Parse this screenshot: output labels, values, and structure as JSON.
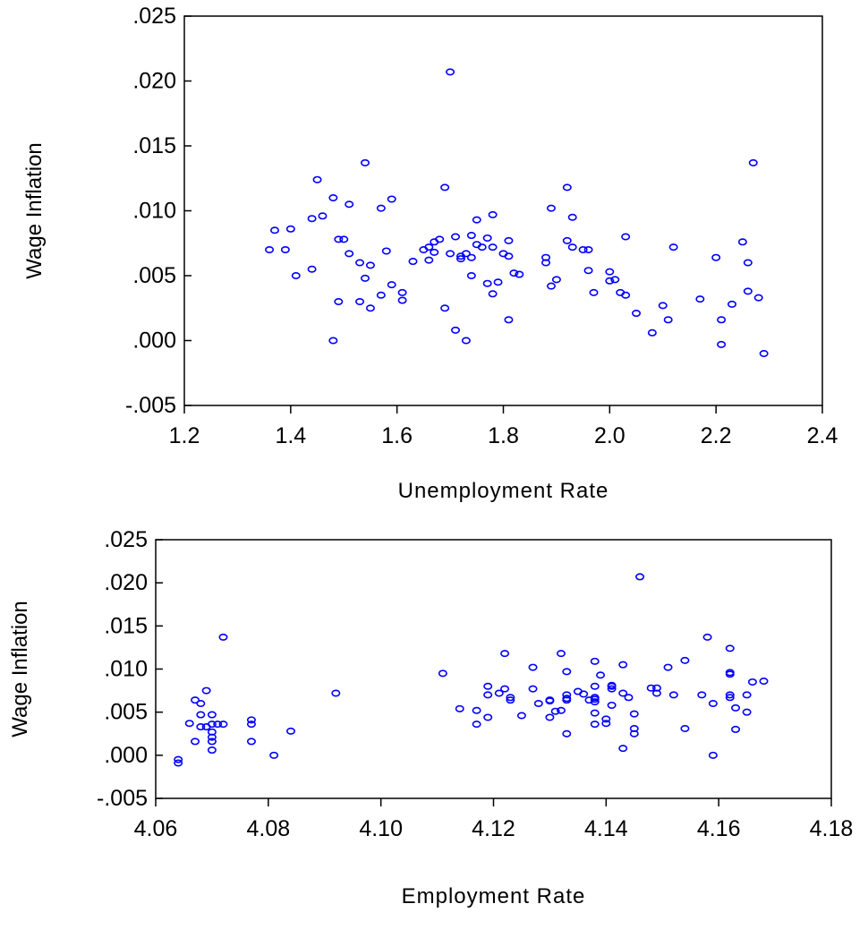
{
  "colors": {
    "point": "#0000ff",
    "axis": "#000000",
    "background": "#ffffff"
  },
  "chart_data": [
    {
      "type": "scatter",
      "title": "",
      "xlabel": "Unemployment Rate",
      "ylabel": "Wage Inflation",
      "xlim": [
        1.2,
        2.4
      ],
      "ylim": [
        -0.005,
        0.025
      ],
      "xticks": [
        "1.2",
        "1.4",
        "1.6",
        "1.8",
        "2.0",
        "2.2",
        "2.4"
      ],
      "yticks": [
        "-.005",
        ".000",
        ".005",
        ".010",
        ".015",
        ".020",
        ".025"
      ],
      "grid": false,
      "legend": "none",
      "series": [
        {
          "marker": "open-circle",
          "points": [
            [
              1.36,
              0.007
            ],
            [
              1.37,
              0.0085
            ],
            [
              1.39,
              0.007
            ],
            [
              1.4,
              0.0086
            ],
            [
              1.41,
              0.005
            ],
            [
              1.44,
              0.0094
            ],
            [
              1.44,
              0.0055
            ],
            [
              1.45,
              0.0124
            ],
            [
              1.46,
              0.0096
            ],
            [
              1.48,
              0.011
            ],
            [
              1.48,
              0.0
            ],
            [
              1.49,
              0.0078
            ],
            [
              1.49,
              0.003
            ],
            [
              1.5,
              0.0078
            ],
            [
              1.51,
              0.0105
            ],
            [
              1.51,
              0.0067
            ],
            [
              1.53,
              0.006
            ],
            [
              1.53,
              0.003
            ],
            [
              1.54,
              0.0137
            ],
            [
              1.54,
              0.0048
            ],
            [
              1.55,
              0.0058
            ],
            [
              1.55,
              0.0025
            ],
            [
              1.57,
              0.0102
            ],
            [
              1.57,
              0.0035
            ],
            [
              1.58,
              0.0069
            ],
            [
              1.59,
              0.0109
            ],
            [
              1.59,
              0.0043
            ],
            [
              1.61,
              0.0037
            ],
            [
              1.61,
              0.0031
            ],
            [
              1.63,
              0.0061
            ],
            [
              1.65,
              0.007
            ],
            [
              1.66,
              0.0062
            ],
            [
              1.66,
              0.0072
            ],
            [
              1.67,
              0.0068
            ],
            [
              1.67,
              0.0076
            ],
            [
              1.68,
              0.0078
            ],
            [
              1.69,
              0.0118
            ],
            [
              1.69,
              0.0025
            ],
            [
              1.7,
              0.0067
            ],
            [
              1.7,
              0.0207
            ],
            [
              1.71,
              0.008
            ],
            [
              1.71,
              0.0008
            ],
            [
              1.72,
              0.0065
            ],
            [
              1.72,
              0.0063
            ],
            [
              1.73,
              0.0
            ],
            [
              1.73,
              0.0067
            ],
            [
              1.74,
              0.005
            ],
            [
              1.74,
              0.0081
            ],
            [
              1.74,
              0.0064
            ],
            [
              1.75,
              0.0093
            ],
            [
              1.75,
              0.0074
            ],
            [
              1.76,
              0.0072
            ],
            [
              1.77,
              0.0079
            ],
            [
              1.77,
              0.0044
            ],
            [
              1.78,
              0.0097
            ],
            [
              1.78,
              0.0072
            ],
            [
              1.78,
              0.0036
            ],
            [
              1.79,
              0.0045
            ],
            [
              1.8,
              0.0067
            ],
            [
              1.81,
              0.0016
            ],
            [
              1.81,
              0.0077
            ],
            [
              1.81,
              0.0065
            ],
            [
              1.82,
              0.0052
            ],
            [
              1.83,
              0.0051
            ],
            [
              1.88,
              0.006
            ],
            [
              1.88,
              0.0064
            ],
            [
              1.89,
              0.0042
            ],
            [
              1.89,
              0.0102
            ],
            [
              1.9,
              0.0047
            ],
            [
              1.92,
              0.0077
            ],
            [
              1.92,
              0.0118
            ],
            [
              1.93,
              0.0072
            ],
            [
              1.93,
              0.0095
            ],
            [
              1.95,
              0.007
            ],
            [
              1.96,
              0.0054
            ],
            [
              1.96,
              0.007
            ],
            [
              1.97,
              0.0037
            ],
            [
              2.0,
              0.0053
            ],
            [
              2.0,
              0.0046
            ],
            [
              2.01,
              0.0047
            ],
            [
              2.02,
              0.0037
            ],
            [
              2.03,
              0.008
            ],
            [
              2.03,
              0.0035
            ],
            [
              2.05,
              0.0021
            ],
            [
              2.08,
              0.0006
            ],
            [
              2.1,
              0.0027
            ],
            [
              2.11,
              0.0016
            ],
            [
              2.12,
              0.0072
            ],
            [
              2.17,
              0.0032
            ],
            [
              2.2,
              0.0064
            ],
            [
              2.21,
              0.0016
            ],
            [
              2.21,
              -0.0003
            ],
            [
              2.23,
              0.0028
            ],
            [
              2.25,
              0.0076
            ],
            [
              2.26,
              0.006
            ],
            [
              2.26,
              0.0038
            ],
            [
              2.27,
              0.0137
            ],
            [
              2.28,
              0.0033
            ],
            [
              2.29,
              -0.001
            ]
          ]
        }
      ]
    },
    {
      "type": "scatter",
      "title": "",
      "xlabel": "Employment Rate",
      "ylabel": "Wage Inflation",
      "xlim": [
        4.06,
        4.18
      ],
      "ylim": [
        -0.005,
        0.025
      ],
      "xticks": [
        "4.06",
        "4.08",
        "4.10",
        "4.12",
        "4.14",
        "4.16",
        "4.18"
      ],
      "yticks": [
        "-.005",
        ".000",
        ".005",
        ".010",
        ".015",
        ".020",
        ".025"
      ],
      "grid": false,
      "legend": "none",
      "series": [
        {
          "marker": "open-circle",
          "points": [
            [
              4.064,
              -0.0005
            ],
            [
              4.064,
              -0.0009
            ],
            [
              4.066,
              0.0037
            ],
            [
              4.067,
              0.0064
            ],
            [
              4.067,
              0.0016
            ],
            [
              4.068,
              0.006
            ],
            [
              4.068,
              0.0047
            ],
            [
              4.068,
              0.0033
            ],
            [
              4.069,
              0.0075
            ],
            [
              4.069,
              0.0033
            ],
            [
              4.07,
              0.0047
            ],
            [
              4.07,
              0.0036
            ],
            [
              4.07,
              0.0027
            ],
            [
              4.07,
              0.0021
            ],
            [
              4.07,
              0.0016
            ],
            [
              4.07,
              0.0006
            ],
            [
              4.071,
              0.0036
            ],
            [
              4.072,
              0.0137
            ],
            [
              4.072,
              0.0036
            ],
            [
              4.077,
              0.0041
            ],
            [
              4.077,
              0.0036
            ],
            [
              4.077,
              0.0016
            ],
            [
              4.081,
              0.0
            ],
            [
              4.084,
              0.0028
            ],
            [
              4.092,
              0.0072
            ],
            [
              4.111,
              0.0095
            ],
            [
              4.114,
              0.0054
            ],
            [
              4.117,
              0.0052
            ],
            [
              4.117,
              0.0036
            ],
            [
              4.119,
              0.008
            ],
            [
              4.119,
              0.007
            ],
            [
              4.119,
              0.0044
            ],
            [
              4.121,
              0.0072
            ],
            [
              4.122,
              0.0118
            ],
            [
              4.122,
              0.0077
            ],
            [
              4.123,
              0.0067
            ],
            [
              4.123,
              0.0064
            ],
            [
              4.125,
              0.0046
            ],
            [
              4.127,
              0.0102
            ],
            [
              4.127,
              0.0077
            ],
            [
              4.128,
              0.006
            ],
            [
              4.13,
              0.0064
            ],
            [
              4.13,
              0.0063
            ],
            [
              4.13,
              0.0044
            ],
            [
              4.131,
              0.0051
            ],
            [
              4.132,
              0.0118
            ],
            [
              4.132,
              0.0052
            ],
            [
              4.133,
              0.0097
            ],
            [
              4.133,
              0.007
            ],
            [
              4.133,
              0.0066
            ],
            [
              4.133,
              0.0064
            ],
            [
              4.133,
              0.0025
            ],
            [
              4.135,
              0.0074
            ],
            [
              4.136,
              0.0071
            ],
            [
              4.137,
              0.0064
            ],
            [
              4.138,
              0.0109
            ],
            [
              4.138,
              0.008
            ],
            [
              4.138,
              0.0067
            ],
            [
              4.138,
              0.0065
            ],
            [
              4.138,
              0.0062
            ],
            [
              4.138,
              0.0049
            ],
            [
              4.138,
              0.0036
            ],
            [
              4.139,
              0.0093
            ],
            [
              4.14,
              0.0042
            ],
            [
              4.14,
              0.0037
            ],
            [
              4.141,
              0.0081
            ],
            [
              4.141,
              0.008
            ],
            [
              4.141,
              0.0077
            ],
            [
              4.141,
              0.0058
            ],
            [
              4.143,
              0.0105
            ],
            [
              4.143,
              0.0072
            ],
            [
              4.143,
              0.0008
            ],
            [
              4.144,
              0.0067
            ],
            [
              4.145,
              0.0031
            ],
            [
              4.145,
              0.0048
            ],
            [
              4.145,
              0.0025
            ],
            [
              4.146,
              0.0207
            ],
            [
              4.148,
              0.0078
            ],
            [
              4.149,
              0.0078
            ],
            [
              4.149,
              0.0072
            ],
            [
              4.151,
              0.0102
            ],
            [
              4.152,
              0.007
            ],
            [
              4.154,
              0.011
            ],
            [
              4.154,
              0.0031
            ],
            [
              4.157,
              0.007
            ],
            [
              4.158,
              0.0137
            ],
            [
              4.159,
              0.006
            ],
            [
              4.159,
              0.0
            ],
            [
              4.162,
              0.0124
            ],
            [
              4.162,
              0.0096
            ],
            [
              4.162,
              0.0094
            ],
            [
              4.162,
              0.007
            ],
            [
              4.162,
              0.0067
            ],
            [
              4.163,
              0.0055
            ],
            [
              4.163,
              0.003
            ],
            [
              4.165,
              0.007
            ],
            [
              4.165,
              0.005
            ],
            [
              4.166,
              0.0085
            ],
            [
              4.168,
              0.0086
            ]
          ]
        }
      ]
    }
  ]
}
